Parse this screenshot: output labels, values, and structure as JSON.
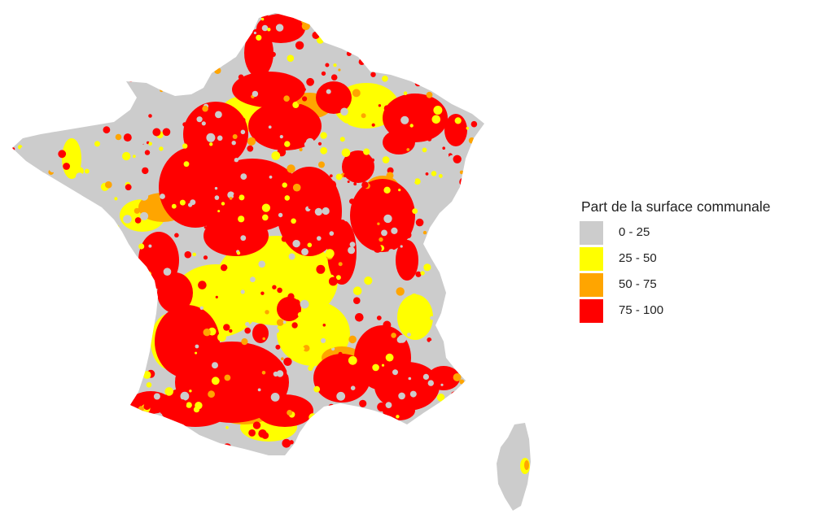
{
  "legend": {
    "title": "Part de la surface communale",
    "items": [
      {
        "label": "0 - 25",
        "color": "#cccccc"
      },
      {
        "label": "25 - 50",
        "color": "#ffff00"
      },
      {
        "label": "50 - 75",
        "color": "#ffa500"
      },
      {
        "label": "75 - 100",
        "color": "#ff0000"
      }
    ]
  },
  "map": {
    "region": "France",
    "colors": {
      "low": "#cccccc",
      "mid_low": "#ffff00",
      "mid_high": "#ffa500",
      "high": "#ff0000"
    }
  }
}
